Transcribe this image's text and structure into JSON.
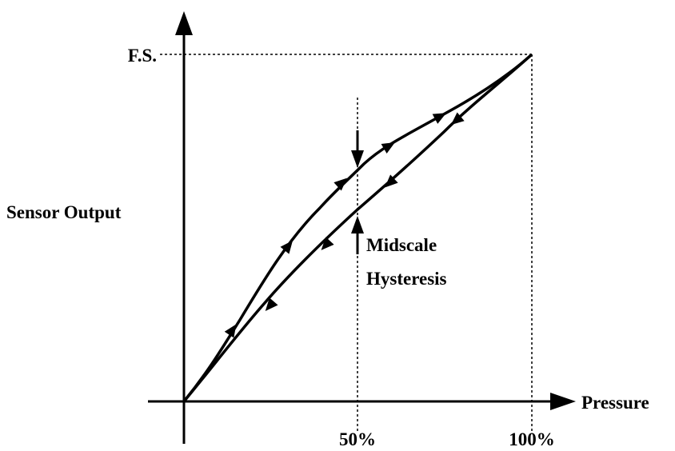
{
  "labels": {
    "full_scale": "F.S.",
    "y_axis": "Sensor Output",
    "x_axis": "Pressure",
    "annotation_line1": "Midscale",
    "annotation_line2": "Hysteresis",
    "x_mid": "50%",
    "x_full": "100%"
  }
}
